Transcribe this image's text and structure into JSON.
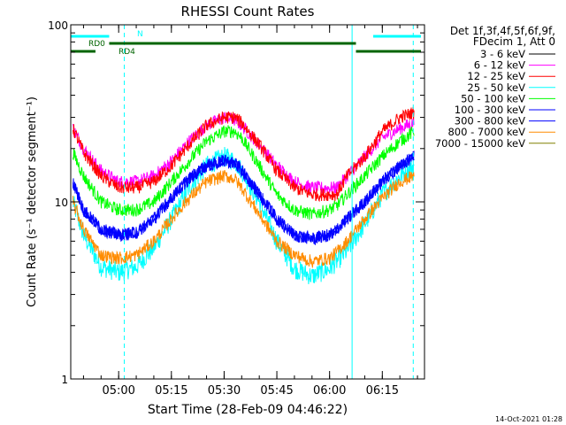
{
  "chart_data": {
    "type": "line",
    "title": "RHESSI Count Rates",
    "xlabel": "Start Time (28-Feb-09 04:46:22)",
    "ylabel": "Count Rate (s⁻¹ detector segment⁻¹)",
    "y_scale": "log",
    "ylim": [
      1,
      100
    ],
    "y_ticks": [
      {
        "value": 1,
        "label": "1"
      },
      {
        "value": 10,
        "label": "10"
      },
      {
        "value": 100,
        "label": "100"
      }
    ],
    "xlim_minutes_of_day": [
      286.37,
      387.0
    ],
    "x_ticks": [
      {
        "minutes": 300,
        "label": "05:00"
      },
      {
        "minutes": 315,
        "label": "05:15"
      },
      {
        "minutes": 330,
        "label": "05:30"
      },
      {
        "minutes": 345,
        "label": "05:45"
      },
      {
        "minutes": 360,
        "label": "06:00"
      },
      {
        "minutes": 375,
        "label": "06:15"
      }
    ],
    "grid": false,
    "legend_placement": "right",
    "legend_header": [
      "Det 1f,3f,4f,5f,6f,9f,",
      "FDecim 1, Att 0"
    ],
    "series": [
      {
        "name": "3 - 6 keV",
        "color": "#000000",
        "visible": false,
        "x_minutes": [],
        "y": []
      },
      {
        "name": "6 - 12 keV",
        "color": "#ff00ff",
        "x_minutes": [
          287,
          290,
          295,
          300,
          305,
          310,
          315,
          320,
          325,
          330,
          333,
          335,
          340,
          345,
          350,
          355,
          360,
          362,
          365,
          370,
          375,
          380,
          384
        ],
        "y": [
          26,
          20,
          15,
          13,
          13,
          14,
          17,
          22,
          27,
          30,
          29,
          27,
          21,
          16,
          13,
          12,
          12,
          12,
          14,
          18,
          23,
          26,
          28
        ]
      },
      {
        "name": "12 - 25 keV",
        "color": "#ff0000",
        "x_minutes": [
          287,
          290,
          295,
          300,
          305,
          310,
          315,
          320,
          325,
          330,
          333,
          335,
          340,
          345,
          350,
          355,
          360,
          362,
          365,
          370,
          375,
          380,
          384
        ],
        "y": [
          26,
          19,
          14,
          12,
          12,
          13,
          16,
          21,
          27,
          30,
          30,
          28,
          21,
          15,
          12,
          11,
          11,
          11,
          14,
          18,
          25,
          30,
          32
        ]
      },
      {
        "name": "25 - 50 keV",
        "color": "#00ffff",
        "x_minutes": [
          287,
          290,
          295,
          300,
          305,
          310,
          315,
          320,
          325,
          330,
          333,
          335,
          340,
          345,
          350,
          355,
          360,
          362,
          365,
          370,
          375,
          380,
          384
        ],
        "y": [
          10,
          6.5,
          4.3,
          4,
          4.3,
          5.5,
          8,
          12,
          16,
          18,
          17,
          15,
          10,
          6,
          4.2,
          3.8,
          4.2,
          4.6,
          5.3,
          7.5,
          11,
          14,
          16
        ]
      },
      {
        "name": "50 - 100 keV",
        "color": "#00ff00",
        "x_minutes": [
          287,
          290,
          295,
          300,
          305,
          310,
          315,
          320,
          325,
          330,
          333,
          335,
          340,
          345,
          350,
          355,
          360,
          362,
          365,
          370,
          375,
          380,
          384
        ],
        "y": [
          19,
          14,
          10,
          9,
          9,
          10,
          13,
          17,
          22,
          25,
          25,
          23,
          16,
          11,
          9,
          8.5,
          9,
          9.5,
          11,
          14,
          18,
          22,
          25
        ]
      },
      {
        "name": "100 - 300 keV",
        "color": "#0000ff",
        "x_minutes": [
          287,
          290,
          295,
          300,
          305,
          310,
          315,
          320,
          325,
          330,
          333,
          335,
          340,
          345,
          350,
          355,
          360,
          362,
          365,
          370,
          375,
          380,
          384
        ],
        "y": [
          13,
          9,
          7,
          6.5,
          6.7,
          8,
          10.5,
          13.5,
          16,
          17,
          16.5,
          15,
          11,
          8,
          6.5,
          6.2,
          6.5,
          7,
          8,
          10,
          13,
          16,
          18
        ]
      },
      {
        "name": "300 - 800 keV",
        "color": "#0000ff",
        "x_minutes": [
          287,
          290,
          295,
          300,
          305,
          310,
          315,
          320,
          325,
          330,
          333,
          335,
          340,
          345,
          350,
          355,
          360,
          362,
          365,
          370,
          375,
          380,
          384
        ],
        "y": [
          13,
          9,
          7,
          6.5,
          6.7,
          8,
          10.5,
          13.5,
          16,
          17,
          16.5,
          15,
          11,
          8,
          6.5,
          6.2,
          6.5,
          7,
          8,
          10,
          13,
          16,
          18
        ]
      },
      {
        "name": "800 - 7000 keV",
        "color": "#ff8c00",
        "x_minutes": [
          287,
          290,
          295,
          300,
          305,
          310,
          315,
          320,
          325,
          330,
          333,
          335,
          340,
          345,
          350,
          355,
          360,
          362,
          365,
          370,
          375,
          380,
          384
        ],
        "y": [
          10,
          7,
          5,
          4.8,
          5,
          6,
          8,
          10.5,
          13,
          14,
          13.5,
          12,
          8.5,
          6,
          5,
          4.6,
          4.8,
          5.2,
          6,
          8,
          10.5,
          13,
          14
        ]
      },
      {
        "name": "7000 - 15000 keV",
        "color": "#808000",
        "visible": false,
        "x_minutes": [],
        "y": []
      }
    ],
    "annotations": [
      {
        "label": "N",
        "color": "#00ffff",
        "segments": [
          [
            286.4,
            297.3
          ],
          [
            372.4,
            386.0
          ]
        ]
      },
      {
        "label": "RD0",
        "color": "#006400",
        "segments": [
          [
            297.3,
            367.5
          ]
        ]
      },
      {
        "label": "RD4",
        "color": "#006400",
        "segments": [
          [
            286.4,
            293.4
          ],
          [
            367.5,
            386.0
          ]
        ]
      }
    ],
    "vertical_markers": [
      {
        "minutes": 301.6,
        "color": "#00ffff",
        "style": "dashed"
      },
      {
        "minutes": 366.4,
        "color": "#00ffff",
        "style": "solid"
      },
      {
        "minutes": 383.8,
        "color": "#00ffff",
        "style": "dashed"
      }
    ]
  },
  "footer": {
    "timestamp": "14-Oct-2021 01:28"
  }
}
